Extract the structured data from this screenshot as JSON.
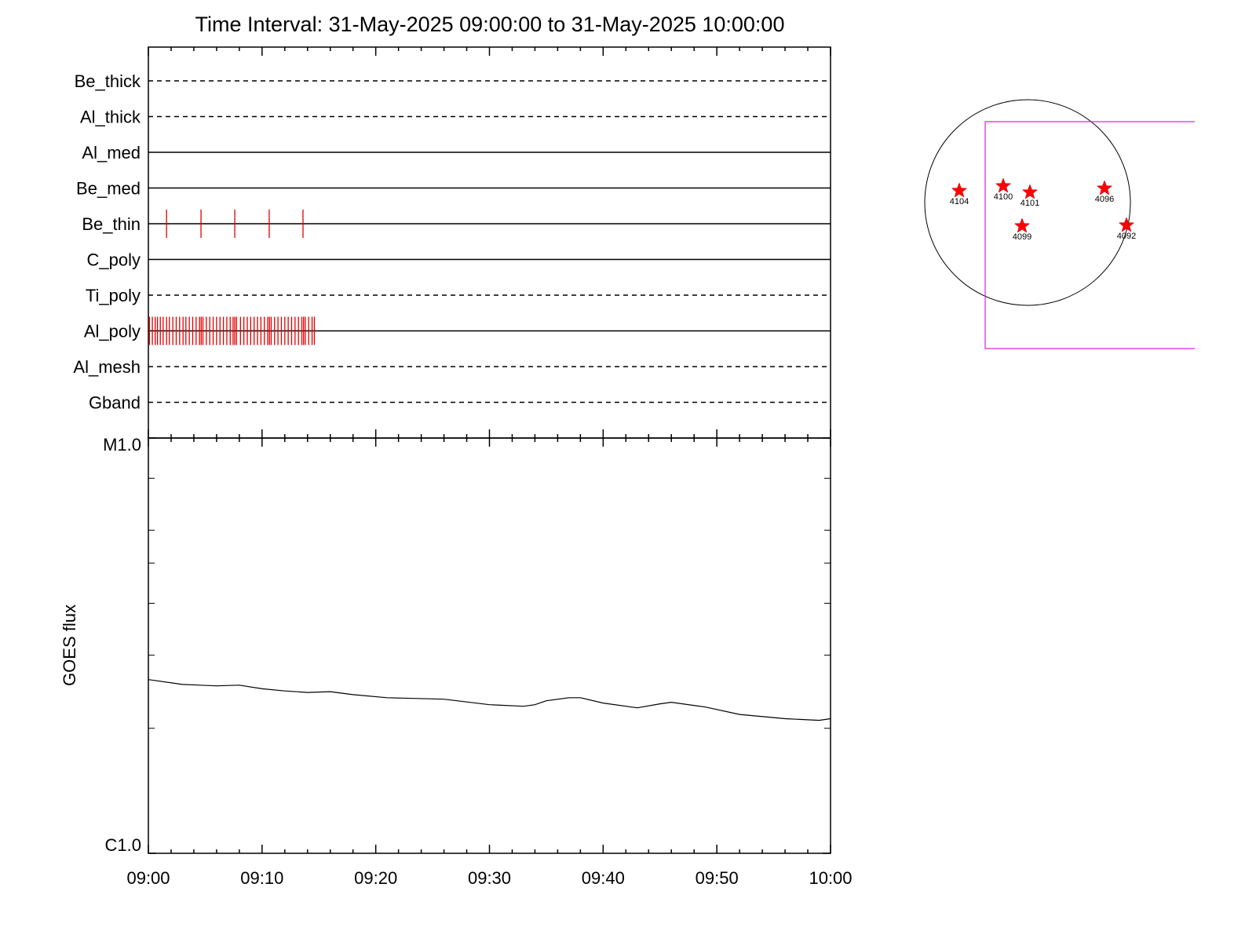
{
  "chart_data": {
    "type": "timeline",
    "title": "Time Interval: 31-May-2025 09:00:00 to 31-May-2025 10:00:00",
    "xlim": [
      0,
      60
    ],
    "xticks": [
      {
        "value": 0,
        "label": "09:00"
      },
      {
        "value": 10,
        "label": "09:10"
      },
      {
        "value": 20,
        "label": "09:20"
      },
      {
        "value": 30,
        "label": "09:30"
      },
      {
        "value": 40,
        "label": "09:40"
      },
      {
        "value": 50,
        "label": "09:50"
      },
      {
        "value": 60,
        "label": "10:00"
      }
    ],
    "xminor": [
      2,
      4,
      6,
      8,
      12,
      14,
      16,
      18,
      22,
      24,
      26,
      28,
      32,
      34,
      36,
      38,
      42,
      44,
      46,
      48,
      52,
      54,
      56,
      58
    ],
    "event_color": "#e00000",
    "rows": [
      {
        "name": "Be_thick",
        "style": "dashed",
        "events": []
      },
      {
        "name": "Al_thick",
        "style": "dashed",
        "events": []
      },
      {
        "name": "Al_med",
        "style": "solid",
        "events": []
      },
      {
        "name": "Be_med",
        "style": "solid",
        "events": []
      },
      {
        "name": "Be_thin",
        "style": "solid",
        "events": [
          1.6,
          4.63,
          7.6,
          10.63,
          13.6
        ]
      },
      {
        "name": "C_poly",
        "style": "solid",
        "events": []
      },
      {
        "name": "Ti_poly",
        "style": "dashed",
        "events": []
      },
      {
        "name": "Al_poly",
        "style": "solid",
        "events": [
          0.1,
          0.35,
          0.6,
          0.8,
          1.05,
          1.3,
          1.6,
          1.85,
          2.15,
          2.45,
          2.75,
          3.05,
          3.3,
          3.6,
          3.9,
          4.2,
          4.5,
          4.65,
          4.8,
          5.1,
          5.4,
          5.7,
          6.0,
          6.3,
          6.6,
          6.9,
          7.2,
          7.45,
          7.6,
          7.75,
          8.1,
          8.4,
          8.7,
          9.0,
          9.3,
          9.6,
          9.9,
          10.2,
          10.5,
          10.65,
          10.8,
          11.1,
          11.4,
          11.7,
          12.0,
          12.3,
          12.6,
          12.9,
          13.2,
          13.5,
          13.65,
          13.8,
          14.1,
          14.4,
          14.6
        ]
      },
      {
        "name": "Al_mesh",
        "style": "dashed",
        "events": []
      },
      {
        "name": "Gband",
        "style": "dashed",
        "events": []
      }
    ],
    "goes": {
      "ylabel": "GOES flux",
      "log": true,
      "ylim": [
        1e-06,
        1e-05
      ],
      "yticks": [
        {
          "value": 1e-06,
          "label": "C1.0"
        },
        {
          "value": 1e-05,
          "label": "M1.0"
        }
      ],
      "yminor": [
        2e-06,
        3e-06,
        4e-06,
        5e-06,
        6e-06,
        8e-06
      ],
      "color": "#000000",
      "x": [
        0,
        3,
        6,
        8,
        10,
        12,
        14,
        16,
        18,
        21,
        26,
        30,
        33,
        34,
        35,
        37,
        38,
        40,
        43,
        45,
        46,
        49,
        52,
        56,
        59,
        60
      ],
      "values": [
        2.62e-06,
        2.55e-06,
        2.53e-06,
        2.54e-06,
        2.49e-06,
        2.46e-06,
        2.44e-06,
        2.45e-06,
        2.41e-06,
        2.37e-06,
        2.35e-06,
        2.28e-06,
        2.26e-06,
        2.28e-06,
        2.33e-06,
        2.37e-06,
        2.37e-06,
        2.3e-06,
        2.24e-06,
        2.29e-06,
        2.31e-06,
        2.25e-06,
        2.16e-06,
        2.11e-06,
        2.09e-06,
        2.11e-06
      ]
    },
    "regions": [
      "4104",
      "4100",
      "4101",
      "4096",
      "4099",
      "4092"
    ]
  }
}
